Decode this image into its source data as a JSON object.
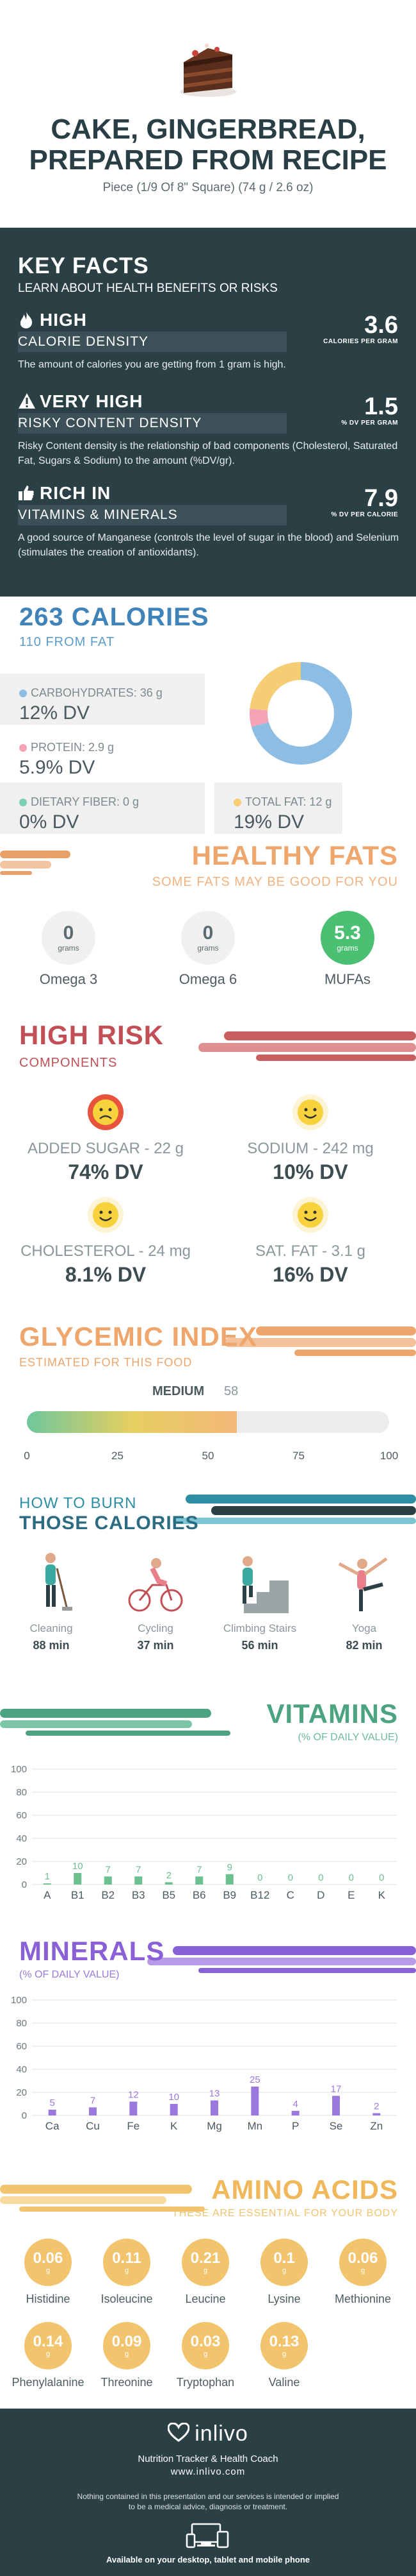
{
  "header": {
    "title_line1": "CAKE, GINGERBREAD,",
    "title_line2": "PREPARED FROM RECIPE",
    "serving": "Piece (1/9 Of 8\" Square) (74 g / 2.6 oz)"
  },
  "key_facts": {
    "title": "KEY FACTS",
    "subtitle": "LEARN ABOUT HEALTH BENEFITS OR RISKS",
    "items": [
      {
        "head": "HIGH",
        "bar": "CALORIE DENSITY",
        "desc": "The amount of calories you are getting from 1 gram is high.",
        "value": "3.6",
        "unit": "CALORIES PER GRAM",
        "icon": "flame-icon"
      },
      {
        "head": "VERY HIGH",
        "bar": "RISKY CONTENT DENSITY",
        "desc": "Risky Content density is the relationship of bad components (Cholesterol, Saturated Fat, Sugars & Sodium) to the amount (%DV/gr).",
        "value": "1.5",
        "unit": "% DV PER GRAM",
        "icon": "warning-icon"
      },
      {
        "head": "RICH  IN",
        "bar": "VITAMINS & MINERALS",
        "desc": "A good source of Manganese (controls the level of sugar in the blood) and Selenium (stimulates the creation of antioxidants).",
        "value": "7.9",
        "unit": "% DV PER CALORIE",
        "icon": "thumbs-up-icon"
      }
    ]
  },
  "calories": {
    "title": "263 CALORIES",
    "from_fat": "110 FROM FAT",
    "carbs_label": "CARBOHYDRATES: 36 g",
    "carbs_dv": "12% DV",
    "protein_label": "PROTEIN: 2.9 g",
    "protein_dv": "5.9% DV",
    "fiber_label": "DIETARY FIBER: 0 g",
    "fiber_dv": "0% DV",
    "fat_label": "TOTAL FAT: 12 g",
    "fat_dv": "19% DV",
    "colors": {
      "carbs": "#8dbde3",
      "protein": "#f3a3b5",
      "fiber": "#7ccfb0",
      "fat": "#f5cd75"
    }
  },
  "chart_data": [
    {
      "type": "pie",
      "title": "",
      "categories": [
        "CARBOHYDRATES",
        "PROTEIN",
        "TOTAL FAT"
      ],
      "values": [
        36,
        2.9,
        12
      ],
      "colors": [
        "#8dbde3",
        "#f3a3b5",
        "#f5cd75"
      ]
    },
    {
      "type": "bar",
      "title": "VITAMINS",
      "subtitle": "(% OF DAILY VALUE)",
      "categories": [
        "A",
        "B1",
        "B2",
        "B3",
        "B5",
        "B6",
        "B9",
        "B12",
        "C",
        "D",
        "E",
        "K"
      ],
      "values": [
        1,
        10,
        7,
        7,
        2,
        7,
        9,
        0,
        0,
        0,
        0,
        0
      ],
      "ylim": [
        0,
        100
      ],
      "yticks": [
        0,
        20,
        40,
        60,
        80,
        100
      ]
    },
    {
      "type": "bar",
      "title": "MINERALS",
      "subtitle": "(% OF DAILY VALUE)",
      "categories": [
        "Ca",
        "Cu",
        "Fe",
        "K",
        "Mg",
        "Mn",
        "P",
        "Se",
        "Zn"
      ],
      "values": [
        5,
        7,
        12,
        10,
        13,
        25,
        4,
        17,
        2
      ],
      "ylim": [
        0,
        100
      ],
      "yticks": [
        0,
        20,
        40,
        60,
        80,
        100
      ]
    }
  ],
  "healthy_fats": {
    "title": "HEALTHY FATS",
    "subtitle": "SOME FATS MAY BE GOOD FOR YOU",
    "unit": "grams",
    "items": [
      {
        "label": "Omega 3",
        "value": "0"
      },
      {
        "label": "Omega 6",
        "value": "0"
      },
      {
        "label": "MUFAs",
        "value": "5.3"
      }
    ]
  },
  "high_risk": {
    "title": "HIGH RISK",
    "subtitle": "COMPONENTS",
    "items": [
      {
        "label": "ADDED SUGAR - 22 g",
        "dv": "74% DV",
        "face": "sad-face-icon",
        "color": "#e8533d"
      },
      {
        "label": "SODIUM - 242 mg",
        "dv": "10% DV",
        "face": "happy-face-icon",
        "color": "#f7d23c"
      },
      {
        "label": "CHOLESTEROL - 24 mg",
        "dv": "8.1% DV",
        "face": "happy-face-icon",
        "color": "#f7d23c"
      },
      {
        "label": "SAT. FAT - 3.1 g",
        "dv": "16% DV",
        "face": "happy-face-icon",
        "color": "#f7d23c"
      }
    ]
  },
  "glycemic": {
    "title": "GLYCEMIC INDEX",
    "subtitle": "ESTIMATED FOR THIS FOOD",
    "level": "MEDIUM",
    "value": "58",
    "value_num": 58,
    "ticks": [
      "0",
      "25",
      "50",
      "75",
      "100"
    ]
  },
  "burn": {
    "title_line1": "HOW TO BURN",
    "title_line2": "THOSE CALORIES",
    "items": [
      {
        "label": "Cleaning",
        "value": "88 min",
        "icon": "cleaning-person-icon"
      },
      {
        "label": "Cycling",
        "value": "37 min",
        "icon": "cyclist-icon"
      },
      {
        "label": "Climbing Stairs",
        "value": "56 min",
        "icon": "stair-climber-icon"
      },
      {
        "label": "Yoga",
        "value": "82 min",
        "icon": "yoga-pose-icon"
      }
    ]
  },
  "vitamins": {
    "title": "VITAMINS",
    "subtitle": "(% OF DAILY VALUE)"
  },
  "minerals": {
    "title": "MINERALS",
    "subtitle": "(% OF DAILY VALUE)"
  },
  "amino": {
    "title": "AMINO ACIDS",
    "subtitle": "THESE ARE ESSENTIAL FOR YOUR BODY",
    "unit": "g",
    "items": [
      {
        "label": "Histidine",
        "value": "0.06"
      },
      {
        "label": "Isoleucine",
        "value": "0.11"
      },
      {
        "label": "Leucine",
        "value": "0.21"
      },
      {
        "label": "Lysine",
        "value": "0.1"
      },
      {
        "label": "Methionine",
        "value": "0.06"
      },
      {
        "label": "Phenylalanine",
        "value": "0.14"
      },
      {
        "label": "Threonine",
        "value": "0.09"
      },
      {
        "label": "Tryptophan",
        "value": "0.03"
      },
      {
        "label": "Valine",
        "value": "0.13"
      }
    ]
  },
  "footer": {
    "brand": "inlivo",
    "tagline": "Nutrition Tracker & Health Coach",
    "url": "www.inlivo.com",
    "disclaimer_line1": "Nothing contained in this presentation and our services is intended or implied",
    "disclaimer_line2": "to be a medical advice, diagnosis or treatment.",
    "available": "Available on your desktop, tablet and mobile phone"
  }
}
